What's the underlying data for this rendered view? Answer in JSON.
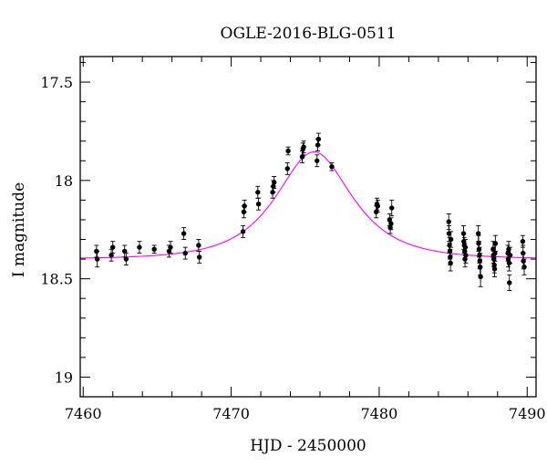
{
  "chart_data": {
    "type": "scatter",
    "title": "OGLE-2016-BLG-0511",
    "xlabel": "HJD - 2450000",
    "ylabel": "I magnitude",
    "xlim": [
      7459.8,
      7490.6
    ],
    "ylim": [
      19.1,
      17.37
    ],
    "y_inverted": true,
    "x_major_ticks": [
      7460,
      7470,
      7480,
      7490
    ],
    "x_tick_labels": [
      "7460",
      "7470",
      "7480",
      "7490"
    ],
    "x_minor_step": 2,
    "y_major_ticks": [
      17.5,
      18,
      18.5,
      19
    ],
    "y_tick_labels": [
      "17.5",
      "18",
      "18.5",
      "19"
    ],
    "y_minor_step": 0.1,
    "grid": false,
    "model_color": "#ff00ff",
    "point_color": "#000000",
    "series": [
      {
        "type": "model",
        "baseline": 18.4,
        "peak_mag": 17.855,
        "t0": 7475.6,
        "tE": 3.7
      },
      {
        "type": "data",
        "points": [
          [
            7460.9,
            18.36,
            0.03
          ],
          [
            7460.95,
            18.4,
            0.04
          ],
          [
            7461.9,
            18.38,
            0.03
          ],
          [
            7462.0,
            18.34,
            0.03
          ],
          [
            7462.8,
            18.36,
            0.03
          ],
          [
            7462.9,
            18.4,
            0.03
          ],
          [
            7463.8,
            18.34,
            0.03
          ],
          [
            7464.8,
            18.35,
            0.02
          ],
          [
            7465.8,
            18.36,
            0.03
          ],
          [
            7465.9,
            18.34,
            0.03
          ],
          [
            7466.8,
            18.27,
            0.03
          ],
          [
            7466.9,
            18.37,
            0.03
          ],
          [
            7467.8,
            18.33,
            0.03
          ],
          [
            7467.85,
            18.39,
            0.03
          ],
          [
            7470.8,
            18.26,
            0.03
          ],
          [
            7470.85,
            18.16,
            0.03
          ],
          [
            7470.9,
            18.13,
            0.03
          ],
          [
            7471.8,
            18.06,
            0.03
          ],
          [
            7471.85,
            18.12,
            0.03
          ],
          [
            7472.8,
            18.06,
            0.03
          ],
          [
            7472.85,
            18.03,
            0.03
          ],
          [
            7472.9,
            18.01,
            0.03
          ],
          [
            7473.8,
            17.94,
            0.03
          ],
          [
            7473.85,
            17.85,
            0.02
          ],
          [
            7474.8,
            17.88,
            0.03
          ],
          [
            7474.85,
            17.84,
            0.03
          ],
          [
            7474.9,
            17.83,
            0.03
          ],
          [
            7475.8,
            17.9,
            0.03
          ],
          [
            7475.85,
            17.82,
            0.03
          ],
          [
            7475.9,
            17.79,
            0.03
          ],
          [
            7476.8,
            17.93,
            0.02
          ],
          [
            7479.8,
            18.16,
            0.03
          ],
          [
            7479.85,
            18.12,
            0.03
          ],
          [
            7479.9,
            18.13,
            0.03
          ],
          [
            7480.7,
            18.2,
            0.03
          ],
          [
            7480.75,
            18.24,
            0.03
          ],
          [
            7480.8,
            18.22,
            0.03
          ],
          [
            7480.85,
            18.14,
            0.04
          ],
          [
            7484.7,
            18.21,
            0.04
          ],
          [
            7484.72,
            18.27,
            0.04
          ],
          [
            7484.75,
            18.33,
            0.04
          ],
          [
            7484.78,
            18.36,
            0.04
          ],
          [
            7484.8,
            18.39,
            0.04
          ],
          [
            7484.82,
            18.42,
            0.04
          ],
          [
            7484.85,
            18.3,
            0.04
          ],
          [
            7485.7,
            18.27,
            0.04
          ],
          [
            7485.72,
            18.31,
            0.04
          ],
          [
            7485.75,
            18.33,
            0.04
          ],
          [
            7485.78,
            18.36,
            0.04
          ],
          [
            7485.8,
            18.4,
            0.04
          ],
          [
            7485.82,
            18.34,
            0.04
          ],
          [
            7485.85,
            18.38,
            0.04
          ],
          [
            7486.7,
            18.27,
            0.04
          ],
          [
            7486.72,
            18.32,
            0.04
          ],
          [
            7486.75,
            18.35,
            0.04
          ],
          [
            7486.78,
            18.38,
            0.04
          ],
          [
            7486.8,
            18.41,
            0.04
          ],
          [
            7486.82,
            18.44,
            0.04
          ],
          [
            7486.85,
            18.49,
            0.05
          ],
          [
            7487.7,
            18.35,
            0.04
          ],
          [
            7487.72,
            18.38,
            0.04
          ],
          [
            7487.75,
            18.4,
            0.04
          ],
          [
            7487.78,
            18.43,
            0.04
          ],
          [
            7487.8,
            18.45,
            0.04
          ],
          [
            7487.82,
            18.37,
            0.04
          ],
          [
            7487.85,
            18.32,
            0.04
          ],
          [
            7488.7,
            18.37,
            0.04
          ],
          [
            7488.72,
            18.4,
            0.04
          ],
          [
            7488.75,
            18.35,
            0.04
          ],
          [
            7488.78,
            18.42,
            0.04
          ],
          [
            7488.8,
            18.52,
            0.04
          ],
          [
            7488.85,
            18.38,
            0.04
          ],
          [
            7489.7,
            18.31,
            0.03
          ],
          [
            7489.72,
            18.37,
            0.04
          ],
          [
            7489.75,
            18.41,
            0.04
          ],
          [
            7489.8,
            18.44,
            0.04
          ]
        ]
      }
    ]
  }
}
